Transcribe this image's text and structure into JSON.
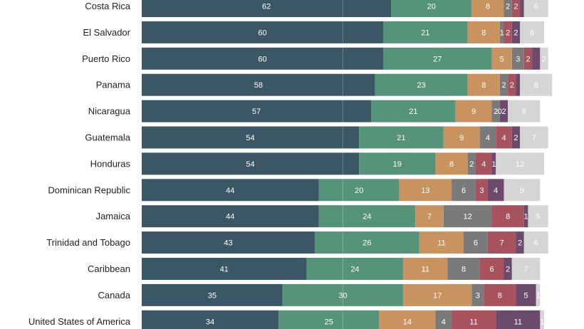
{
  "chart_data": {
    "type": "bar",
    "orientation": "horizontal",
    "stacked": true,
    "xlim": [
      0,
      100
    ],
    "grid": false,
    "legend": "none",
    "categories": [
      "Costa Rica",
      "El Salvador",
      "Puerto Rico",
      "Panama",
      "Nicaragua",
      "Guatemala",
      "Honduras",
      "Dominican Republic",
      "Jamaica",
      "Trinidad and Tobago",
      "Caribbean",
      "Canada",
      "United States of America"
    ],
    "series": [
      {
        "color": "#3b5766",
        "values": [
          62,
          60,
          60,
          58,
          57,
          54,
          54,
          44,
          44,
          43,
          41,
          35,
          34
        ]
      },
      {
        "color": "#55937b",
        "values": [
          20,
          21,
          27,
          23,
          21,
          21,
          19,
          20,
          24,
          26,
          24,
          30,
          25
        ]
      },
      {
        "color": "#c99360",
        "values": [
          8,
          8,
          5,
          8,
          9,
          9,
          8,
          13,
          7,
          11,
          11,
          17,
          14
        ]
      },
      {
        "color": "#7a7a7a",
        "values": [
          2,
          1,
          3,
          2,
          2,
          4,
          2,
          6,
          12,
          6,
          8,
          3,
          4
        ]
      },
      {
        "color": "#a8525e",
        "values": [
          2,
          2,
          2,
          2,
          0,
          4,
          4,
          3,
          8,
          7,
          6,
          8,
          11
        ]
      },
      {
        "color": "#6b4a6b",
        "values": [
          1,
          2,
          2,
          1,
          2,
          2,
          1,
          4,
          1,
          2,
          2,
          5,
          11
        ]
      },
      {
        "color": "#d5d5d5",
        "values": [
          6,
          6,
          2,
          8,
          8,
          7,
          12,
          9,
          5,
          6,
          7,
          1,
          1
        ]
      }
    ],
    "labels": [
      [
        "62",
        "20",
        "8",
        "2",
        "2",
        "",
        "6"
      ],
      [
        "60",
        "21",
        "8",
        "1",
        "2",
        "2",
        "6"
      ],
      [
        "60",
        "27",
        "5",
        "3",
        "2",
        "",
        "2"
      ],
      [
        "58",
        "23",
        "8",
        "2",
        "2",
        "",
        "8"
      ],
      [
        "57",
        "21",
        "9",
        "2",
        "0",
        "2",
        "8"
      ],
      [
        "54",
        "21",
        "9",
        "4",
        "4",
        "2",
        "7"
      ],
      [
        "54",
        "19",
        "8",
        "2",
        "4",
        "1",
        "12"
      ],
      [
        "44",
        "20",
        "13",
        "6",
        "3",
        "4",
        "9"
      ],
      [
        "44",
        "24",
        "7",
        "12",
        "8",
        "1",
        "5"
      ],
      [
        "43",
        "26",
        "11",
        "6",
        "7",
        "2",
        "6"
      ],
      [
        "41",
        "24",
        "11",
        "8",
        "6",
        "2",
        "7"
      ],
      [
        "35",
        "30",
        "17",
        "3",
        "8",
        "5",
        "1"
      ],
      [
        "34",
        "25",
        "14",
        "4",
        "11",
        "11",
        "1"
      ]
    ]
  }
}
